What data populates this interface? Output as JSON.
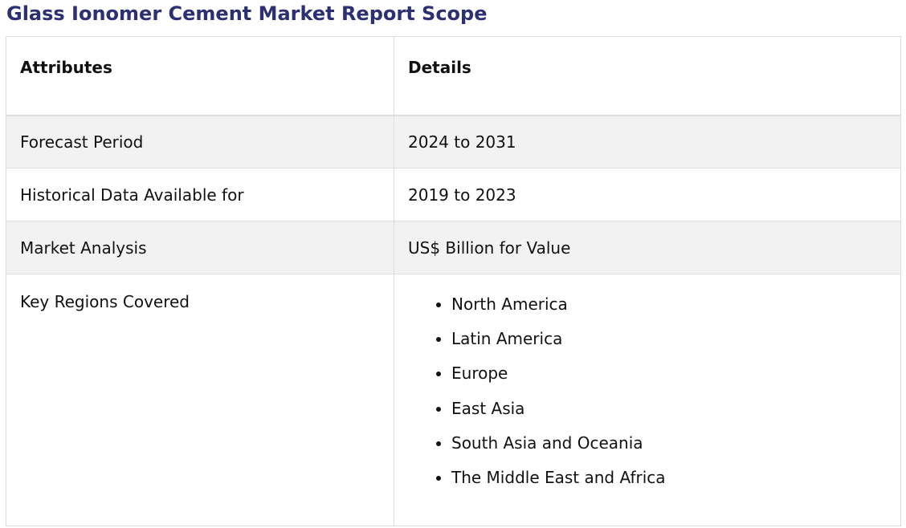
{
  "title": "Glass Ionomer Cement Market Report Scope",
  "table": {
    "headers": [
      "Attributes",
      "Details"
    ],
    "rows": [
      {
        "attribute": "Forecast Period",
        "detail": "2024 to 2031"
      },
      {
        "attribute": "Historical Data Available for",
        "detail": "2019 to 2023"
      },
      {
        "attribute": "Market Analysis",
        "detail": "US$ Billion for Value"
      }
    ],
    "regions": {
      "attribute": "Key Regions Covered",
      "items": [
        "North America",
        "Latin America",
        "Europe",
        "East Asia",
        "South Asia and Oceania",
        "The Middle East and Africa"
      ]
    }
  },
  "colors": {
    "title": "#2b2f73",
    "row_shade": "#f2f2f2",
    "border": "#dddddd"
  }
}
